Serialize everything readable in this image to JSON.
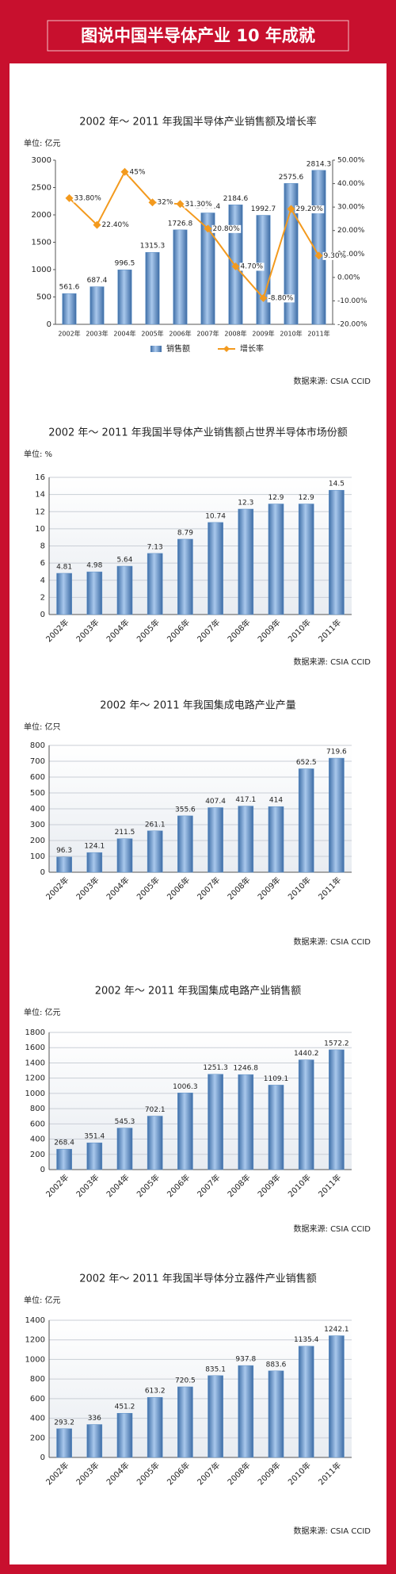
{
  "header": {
    "title": "图说中国半导体产业 10 年成就"
  },
  "chart_data": [
    {
      "type": "combo",
      "title": "2002 年～ 2011 年我国半导体产业销售额及增长率",
      "unit": "单位: 亿元",
      "source": "数据来源: CSIA  CCID",
      "categories": [
        "2002年",
        "2003年",
        "2004年",
        "2005年",
        "2006年",
        "2007年",
        "2008年",
        "2009年",
        "2010年",
        "2011年"
      ],
      "series": [
        {
          "name": "销售额",
          "kind": "bar",
          "color": "#5b8fc7",
          "values": [
            561.6,
            687.4,
            996.5,
            1315.3,
            1726.8,
            2036.4,
            2184.6,
            1992.7,
            2575.6,
            2814.3
          ]
        },
        {
          "name": "增长率",
          "kind": "line",
          "axis": "y2",
          "color": "#f39a1e",
          "values": [
            33.8,
            22.4,
            45,
            32,
            31.3,
            20.8,
            4.7,
            -8.8,
            29.2,
            9.3
          ],
          "value_labels": [
            "33.80%",
            "22.40%",
            "45%",
            "32%",
            "31.30%",
            "20.80%",
            "4.70%",
            "-8.80%",
            "29.20%",
            "9.30%"
          ]
        }
      ],
      "ylim": [
        0,
        3000
      ],
      "yticks": [
        0,
        500,
        1000,
        1500,
        2000,
        2500,
        3000
      ],
      "y2lim": [
        -20,
        50
      ],
      "y2ticks": [
        {
          "value": -20,
          "label": "-20.00%"
        },
        {
          "value": -10,
          "label": "-10.00%"
        },
        {
          "value": 0,
          "label": "0.00%"
        },
        {
          "value": 10,
          "label": "10.00%"
        },
        {
          "value": 20,
          "label": "20.00%"
        },
        {
          "value": 30,
          "label": "30.00%"
        },
        {
          "value": 40,
          "label": "40.00%"
        },
        {
          "value": 50,
          "label": "50.00%"
        }
      ],
      "grid": false
    },
    {
      "type": "bar",
      "title": "2002 年～ 2011 年我国半导体产业销售额占世界半导体市场份额",
      "unit": "单位:  %",
      "source": "数据来源: CSIA  CCID",
      "categories": [
        "2002年",
        "2003年",
        "2004年",
        "2005年",
        "2006年",
        "2007年",
        "2008年",
        "2009年",
        "2010年",
        "2011年"
      ],
      "values": [
        4.81,
        4.98,
        5.64,
        7.13,
        8.79,
        10.74,
        12.3,
        12.9,
        12.9,
        14.5
      ],
      "color": "#5b8fc7",
      "ylim": [
        0,
        16
      ],
      "yticks": [
        0,
        2,
        4,
        6,
        8,
        10,
        12,
        14,
        16
      ],
      "grid": true
    },
    {
      "type": "bar",
      "title": "2002 年～ 2011 年我国集成电路产业产量",
      "unit": "单位: 亿只",
      "source": "数据来源: CSIA  CCID",
      "categories": [
        "2002年",
        "2003年",
        "2004年",
        "2005年",
        "2006年",
        "2007年",
        "2008年",
        "2009年",
        "2010年",
        "2011年"
      ],
      "values": [
        96.3,
        124.1,
        211.5,
        261.1,
        355.6,
        407.4,
        417.1,
        414,
        652.5,
        719.6
      ],
      "color": "#5b8fc7",
      "ylim": [
        0,
        800
      ],
      "yticks": [
        0,
        100,
        200,
        300,
        400,
        500,
        600,
        700,
        800
      ],
      "grid": true
    },
    {
      "type": "bar",
      "title": "2002 年～ 2011 年我国集成电路产业销售额",
      "unit": "单位: 亿元",
      "source": "数据来源: CSIA  CCID",
      "categories": [
        "2002年",
        "2003年",
        "2004年",
        "2005年",
        "2006年",
        "2007年",
        "2008年",
        "2009年",
        "2010年",
        "2011年"
      ],
      "values": [
        268.4,
        351.4,
        545.3,
        702.1,
        1006.3,
        1251.3,
        1246.8,
        1109.1,
        1440.2,
        1572.2
      ],
      "color": "#5b8fc7",
      "ylim": [
        0,
        1800
      ],
      "yticks": [
        0,
        200,
        400,
        600,
        800,
        1000,
        1200,
        1400,
        1600,
        1800
      ],
      "grid": true
    },
    {
      "type": "bar",
      "title": "2002 年～ 2011 年我国半导体分立器件产业销售额",
      "unit": "单位: 亿元",
      "source": "数据来源: CSIA  CCID",
      "categories": [
        "2002年",
        "2003年",
        "2004年",
        "2005年",
        "2006年",
        "2007年",
        "2008年",
        "2009年",
        "2010年",
        "2011年"
      ],
      "values": [
        293.2,
        336,
        451.2,
        613.2,
        720.5,
        835.1,
        937.8,
        883.6,
        1135.4,
        1242.1
      ],
      "color": "#5b8fc7",
      "ylim": [
        0,
        1400
      ],
      "yticks": [
        0,
        200,
        400,
        600,
        800,
        1000,
        1200,
        1400
      ],
      "grid": true
    }
  ]
}
